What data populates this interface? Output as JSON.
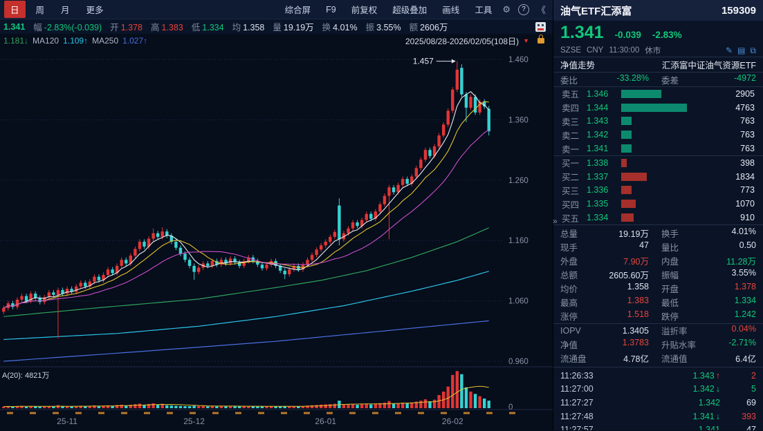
{
  "toolbar": {
    "period_tabs": [
      {
        "label": "日",
        "active": true
      },
      {
        "label": "周",
        "active": false
      },
      {
        "label": "月",
        "active": false
      },
      {
        "label": "更多",
        "active": false
      }
    ],
    "menu_items": [
      "综合屏",
      "F9",
      "前复权",
      "超级叠加",
      "画线",
      "工具"
    ],
    "gear_icon": "⚙",
    "help_icon": "?",
    "collapse_icon": "《"
  },
  "info_bar": {
    "price": "1.341",
    "items": [
      {
        "label": "幅",
        "value": "-2.83%(-0.039)",
        "color": "green"
      },
      {
        "label": "开",
        "value": "1.378",
        "color": "red"
      },
      {
        "label": "高",
        "value": "1.383",
        "color": "red"
      },
      {
        "label": "低",
        "value": "1.334",
        "color": "green"
      },
      {
        "label": "均",
        "value": "1.358",
        "color": "white"
      },
      {
        "label": "量",
        "value": "19.19万",
        "color": "white"
      },
      {
        "label": "换",
        "value": "4.01%",
        "color": "white"
      },
      {
        "label": "振",
        "value": "3.55%",
        "color": "white"
      },
      {
        "label": "额",
        "value": "2606万",
        "color": "white"
      }
    ]
  },
  "ma_legend": {
    "items": [
      {
        "label": "",
        "value": "1.181↓",
        "color": "#2fa35c"
      },
      {
        "label": "MA120",
        "value": "1.109↑",
        "color": "#29c5e8"
      },
      {
        "label": "MA250",
        "value": "1.027↑",
        "color": "#4a6fe0"
      }
    ],
    "date_range": "2025/08/28-2026/02/05(108日)"
  },
  "chart_data": {
    "type": "candlestick",
    "title": "油气ETF汇添富 159309 日K",
    "y_ticks": [
      "1.460",
      "1.360",
      "1.260",
      "1.160",
      "1.060",
      "0.960"
    ],
    "y_range": [
      0.96,
      1.46
    ],
    "x_labels": [
      {
        "label": "25-11",
        "day": 14
      },
      {
        "label": "25-12",
        "day": 42
      },
      {
        "label": "26-01",
        "day": 71
      },
      {
        "label": "26-02",
        "day": 99
      }
    ],
    "annotation": {
      "text": "1.457",
      "day": 100,
      "price": 1.457
    },
    "volume_label": "A(20): 4821万",
    "volume_zero_label": "0",
    "candles": [
      [
        1.042,
        1.052,
        1.038,
        1.048
      ],
      [
        1.048,
        1.06,
        1.044,
        1.056
      ],
      [
        1.056,
        1.06,
        1.046,
        1.05
      ],
      [
        1.05,
        1.066,
        1.046,
        1.062
      ],
      [
        1.062,
        1.072,
        1.058,
        1.068
      ],
      [
        1.068,
        1.072,
        1.056,
        1.06
      ],
      [
        1.06,
        1.076,
        1.056,
        1.072
      ],
      [
        1.072,
        1.076,
        1.061,
        1.065
      ],
      [
        1.065,
        1.069,
        1.054,
        1.058
      ],
      [
        1.058,
        1.07,
        1.054,
        1.066
      ],
      [
        1.066,
        1.078,
        1.062,
        1.074
      ],
      [
        1.074,
        1.078,
        1.066,
        1.07
      ],
      [
        1.07,
        1.082,
        0.998,
        1.078
      ],
      [
        1.078,
        1.082,
        1.068,
        1.072
      ],
      [
        1.072,
        1.084,
        1.068,
        1.08
      ],
      [
        1.08,
        1.084,
        1.071,
        1.075
      ],
      [
        1.075,
        1.088,
        1.071,
        1.084
      ],
      [
        1.084,
        1.094,
        1.08,
        1.09
      ],
      [
        1.09,
        1.094,
        1.08,
        1.084
      ],
      [
        1.084,
        1.096,
        1.08,
        1.092
      ],
      [
        1.092,
        1.104,
        1.088,
        1.1
      ],
      [
        1.1,
        1.104,
        1.09,
        1.094
      ],
      [
        1.094,
        1.107,
        1.09,
        1.103
      ],
      [
        1.103,
        1.116,
        1.099,
        1.112
      ],
      [
        1.112,
        1.116,
        1.102,
        1.106
      ],
      [
        1.106,
        1.122,
        1.102,
        1.118
      ],
      [
        1.118,
        1.132,
        1.114,
        1.128
      ],
      [
        1.128,
        1.132,
        1.118,
        1.122
      ],
      [
        1.122,
        1.139,
        1.118,
        1.135
      ],
      [
        1.135,
        1.15,
        1.131,
        1.146
      ],
      [
        1.146,
        1.162,
        1.142,
        1.158
      ],
      [
        1.158,
        1.162,
        1.146,
        1.15
      ],
      [
        1.15,
        1.167,
        1.146,
        1.163
      ],
      [
        1.163,
        1.18,
        1.159,
        1.172
      ],
      [
        1.172,
        1.176,
        1.162,
        1.166
      ],
      [
        1.166,
        1.182,
        1.162,
        1.175
      ],
      [
        1.175,
        1.179,
        1.164,
        1.168
      ],
      [
        1.168,
        1.172,
        1.154,
        1.158
      ],
      [
        1.158,
        1.162,
        1.144,
        1.148
      ],
      [
        1.148,
        1.152,
        1.134,
        1.138
      ],
      [
        1.138,
        1.142,
        1.124,
        1.128
      ],
      [
        1.128,
        1.132,
        1.114,
        1.118
      ],
      [
        1.118,
        1.122,
        1.095,
        1.108
      ],
      [
        1.108,
        1.119,
        1.104,
        1.115
      ],
      [
        1.115,
        1.126,
        1.111,
        1.122
      ],
      [
        1.122,
        1.126,
        1.114,
        1.118
      ],
      [
        1.118,
        1.13,
        1.114,
        1.126
      ],
      [
        1.126,
        1.13,
        1.116,
        1.12
      ],
      [
        1.12,
        1.132,
        1.116,
        1.128
      ],
      [
        1.128,
        1.132,
        1.118,
        1.122
      ],
      [
        1.122,
        1.134,
        1.118,
        1.13
      ],
      [
        1.13,
        1.134,
        1.12,
        1.124
      ],
      [
        1.124,
        1.128,
        1.114,
        1.118
      ],
      [
        1.118,
        1.13,
        1.114,
        1.126
      ],
      [
        1.126,
        1.136,
        1.122,
        1.132
      ],
      [
        1.132,
        1.136,
        1.122,
        1.126
      ],
      [
        1.126,
        1.13,
        1.116,
        1.12
      ],
      [
        1.12,
        1.124,
        1.11,
        1.114
      ],
      [
        1.114,
        1.124,
        1.11,
        1.12
      ],
      [
        1.12,
        1.13,
        1.116,
        1.126
      ],
      [
        1.126,
        1.13,
        1.114,
        1.118
      ],
      [
        1.118,
        1.122,
        1.106,
        1.11
      ],
      [
        1.11,
        1.114,
        1.096,
        1.104
      ],
      [
        1.104,
        1.116,
        1.1,
        1.112
      ],
      [
        1.112,
        1.122,
        1.108,
        1.118
      ],
      [
        1.118,
        1.122,
        1.108,
        1.112
      ],
      [
        1.112,
        1.124,
        1.108,
        1.12
      ],
      [
        1.12,
        1.132,
        1.116,
        1.128
      ],
      [
        1.128,
        1.14,
        1.124,
        1.136
      ],
      [
        1.136,
        1.149,
        1.132,
        1.145
      ],
      [
        1.145,
        1.156,
        1.141,
        1.152
      ],
      [
        1.152,
        1.162,
        1.148,
        1.158
      ],
      [
        1.158,
        1.17,
        1.154,
        1.166
      ],
      [
        1.166,
        1.178,
        1.162,
        1.174
      ],
      [
        1.218,
        1.23,
        1.152,
        1.162
      ],
      [
        1.162,
        1.176,
        1.158,
        1.172
      ],
      [
        1.172,
        1.184,
        1.168,
        1.18
      ],
      [
        1.18,
        1.194,
        1.176,
        1.19
      ],
      [
        1.19,
        1.194,
        1.18,
        1.184
      ],
      [
        1.184,
        1.198,
        1.18,
        1.194
      ],
      [
        1.194,
        1.208,
        1.19,
        1.204
      ],
      [
        1.204,
        1.208,
        1.192,
        1.196
      ],
      [
        1.196,
        1.212,
        1.192,
        1.208
      ],
      [
        1.208,
        1.224,
        1.204,
        1.22
      ],
      [
        1.22,
        1.238,
        1.216,
        1.234
      ],
      [
        1.234,
        1.252,
        1.162,
        1.248
      ],
      [
        1.248,
        1.252,
        1.236,
        1.24
      ],
      [
        1.24,
        1.256,
        1.236,
        1.252
      ],
      [
        1.252,
        1.266,
        1.248,
        1.262
      ],
      [
        1.262,
        1.266,
        1.25,
        1.254
      ],
      [
        1.254,
        1.27,
        1.25,
        1.266
      ],
      [
        1.266,
        1.284,
        1.262,
        1.28
      ],
      [
        1.28,
        1.298,
        1.276,
        1.294
      ],
      [
        1.294,
        1.314,
        1.29,
        1.31
      ],
      [
        1.31,
        1.314,
        1.296,
        1.3
      ],
      [
        1.3,
        1.32,
        1.296,
        1.316
      ],
      [
        1.316,
        1.338,
        1.312,
        1.334
      ],
      [
        1.334,
        1.356,
        1.33,
        1.352
      ],
      [
        1.352,
        1.379,
        1.348,
        1.375
      ],
      [
        1.375,
        1.414,
        1.371,
        1.41
      ],
      [
        1.41,
        1.457,
        1.406,
        1.443
      ],
      [
        1.446,
        1.452,
        1.398,
        1.402
      ],
      [
        1.402,
        1.406,
        1.356,
        1.38
      ],
      [
        1.38,
        1.402,
        1.376,
        1.398
      ],
      [
        1.398,
        1.402,
        1.368,
        1.372
      ],
      [
        1.372,
        1.394,
        1.368,
        1.39
      ],
      [
        1.39,
        1.394,
        1.378,
        1.382
      ],
      [
        1.378,
        1.383,
        1.334,
        1.341
      ]
    ],
    "volumes": [
      420,
      510,
      380,
      560,
      620,
      400,
      580,
      450,
      390,
      470,
      520,
      430,
      780,
      460,
      540,
      420,
      500,
      640,
      480,
      560,
      720,
      520,
      680,
      740,
      560,
      820,
      880,
      640,
      900,
      1040,
      1180,
      820,
      1100,
      1260,
      880,
      1150,
      760,
      680,
      620,
      580,
      540,
      520,
      640,
      560,
      600,
      480,
      560,
      500,
      580,
      520,
      560,
      480,
      460,
      520,
      560,
      480,
      440,
      460,
      500,
      540,
      480,
      520,
      560,
      480,
      520,
      460,
      540,
      680,
      760,
      840,
      920,
      980,
      1060,
      1150,
      1950,
      900,
      980,
      1060,
      880,
      1020,
      1140,
      960,
      1180,
      1300,
      1460,
      1850,
      1200,
      1320,
      1440,
      1280,
      1500,
      1700,
      1950,
      2300,
      1800,
      2200,
      3400,
      4300,
      5600,
      8600,
      9600,
      8800,
      5400,
      4300,
      3700,
      3100,
      2500,
      1950
    ],
    "overlay_lines": [
      {
        "name": "ma60",
        "color": "#2fa35c",
        "anchors": [
          [
            0,
            1.034
          ],
          [
            20,
            1.048
          ],
          [
            43,
            1.063
          ],
          [
            60,
            1.082
          ],
          [
            70,
            1.094
          ],
          [
            80,
            1.11
          ],
          [
            90,
            1.132
          ],
          [
            100,
            1.158
          ],
          [
            107,
            1.181
          ]
        ]
      },
      {
        "name": "ma120",
        "color": "#29c5e8",
        "anchors": [
          [
            0,
            0.996
          ],
          [
            25,
            1.006
          ],
          [
            43,
            1.018
          ],
          [
            60,
            1.034
          ],
          [
            75,
            1.052
          ],
          [
            90,
            1.076
          ],
          [
            100,
            1.094
          ],
          [
            107,
            1.109
          ]
        ]
      },
      {
        "name": "ma250",
        "color": "#4a6fe0",
        "anchors": [
          [
            0,
            0.96
          ],
          [
            30,
            0.976
          ],
          [
            60,
            0.993
          ],
          [
            85,
            1.011
          ],
          [
            107,
            1.027
          ]
        ]
      }
    ],
    "computed_ma": [
      {
        "name": "ma5",
        "color": "#e8ecf2",
        "window": 5
      },
      {
        "name": "ma10",
        "color": "#e3c32e",
        "window": 10
      },
      {
        "name": "ma20",
        "color": "#cc4fcc",
        "window": 20
      }
    ]
  },
  "quote_panel": {
    "name": "油气ETF汇添富",
    "code": "159309",
    "price": "1.341",
    "change": "-0.039",
    "change_pct": "-2.83%",
    "exchange": "SZSE",
    "currency": "CNY",
    "time": "11:30:00",
    "status": "休市",
    "nav_tab": "净值走势",
    "full_name": "汇添富中证油气资源ETF",
    "weibi_label": "委比",
    "weibi": "-33.28%",
    "weicha_label": "委差",
    "weicha": "-4972",
    "sells": [
      {
        "label": "卖五",
        "price": "1.346",
        "vol": 2905
      },
      {
        "label": "卖四",
        "price": "1.344",
        "vol": 4763
      },
      {
        "label": "卖三",
        "price": "1.343",
        "vol": 763
      },
      {
        "label": "卖二",
        "price": "1.342",
        "vol": 763
      },
      {
        "label": "卖一",
        "price": "1.341",
        "vol": 763
      }
    ],
    "buys": [
      {
        "label": "买一",
        "price": "1.338",
        "vol": 398
      },
      {
        "label": "买二",
        "price": "1.337",
        "vol": 1834
      },
      {
        "label": "买三",
        "price": "1.336",
        "vol": 773
      },
      {
        "label": "买四",
        "price": "1.335",
        "vol": 1070
      },
      {
        "label": "买五",
        "price": "1.334",
        "vol": 910
      }
    ],
    "stats": [
      [
        {
          "label": "总量",
          "value": "19.19万",
          "color": "white"
        },
        {
          "label": "换手",
          "value": "4.01%",
          "color": "white"
        }
      ],
      [
        {
          "label": "现手",
          "value": "47",
          "color": "white"
        },
        {
          "label": "量比",
          "value": "0.50",
          "color": "white"
        }
      ],
      [
        {
          "label": "外盘",
          "value": "7.90万",
          "color": "red"
        },
        {
          "label": "内盘",
          "value": "11.28万",
          "color": "green"
        }
      ],
      [
        {
          "label": "总额",
          "value": "2605.60万",
          "color": "white"
        },
        {
          "label": "振幅",
          "value": "3.55%",
          "color": "white"
        }
      ],
      [
        {
          "label": "均价",
          "value": "1.358",
          "color": "white"
        },
        {
          "label": "开盘",
          "value": "1.378",
          "color": "red"
        }
      ],
      [
        {
          "label": "最高",
          "value": "1.383",
          "color": "red"
        },
        {
          "label": "最低",
          "value": "1.334",
          "color": "green"
        }
      ],
      [
        {
          "label": "涨停",
          "value": "1.518",
          "color": "red"
        },
        {
          "label": "跌停",
          "value": "1.242",
          "color": "green"
        }
      ],
      [
        {
          "label": "IOPV",
          "value": "1.3405",
          "color": "white"
        },
        {
          "label": "溢折率",
          "value": "0.04%",
          "color": "red"
        }
      ],
      [
        {
          "label": "净值",
          "value": "1.3783",
          "color": "red"
        },
        {
          "label": "升贴水率",
          "value": "-2.71%",
          "color": "green"
        }
      ],
      [
        {
          "label": "流通盘",
          "value": "4.78亿",
          "color": "white"
        },
        {
          "label": "流通值",
          "value": "6.4亿",
          "color": "white"
        }
      ]
    ],
    "ticks": [
      {
        "time": "11:26:33",
        "price": "1.343",
        "dir": "up",
        "vol": "2",
        "vol_color": "red"
      },
      {
        "time": "11:27:00",
        "price": "1.342",
        "dir": "down",
        "vol": "5",
        "vol_color": "green"
      },
      {
        "time": "11:27:27",
        "price": "1.342",
        "dir": "",
        "vol": "69",
        "vol_color": "white"
      },
      {
        "time": "11:27:48",
        "price": "1.341",
        "dir": "down",
        "vol": "393",
        "vol_color": "red"
      },
      {
        "time": "11:27:57",
        "price": "1.341",
        "dir": "",
        "vol": "47",
        "vol_color": "white"
      }
    ]
  },
  "colors": {
    "up": "#e23535",
    "down": "#36d3d3",
    "green_text": "#12c77b",
    "red_text": "#e8433a"
  }
}
